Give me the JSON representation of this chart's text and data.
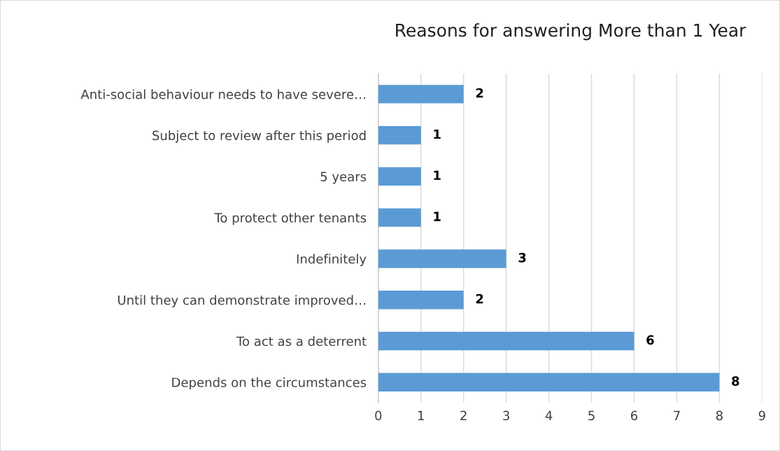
{
  "chart_data": {
    "type": "bar",
    "orientation": "horizontal",
    "title": "Reasons for answering More than 1 Year",
    "categories": [
      "Anti-social behaviour needs to have severe…",
      "Subject to review after this period",
      "5 years",
      "To protect other tenants",
      "Indefinitely",
      "Until they can demonstrate improved…",
      "To act as a deterrent",
      "Depends on the circumstances"
    ],
    "values": [
      2,
      1,
      1,
      1,
      3,
      2,
      6,
      8
    ],
    "color": "#5b9bd5",
    "xlim": [
      0,
      9
    ],
    "xticks": [
      0,
      1,
      2,
      3,
      4,
      5,
      6,
      7,
      8,
      9
    ],
    "grid": "x",
    "data_labels": true
  }
}
